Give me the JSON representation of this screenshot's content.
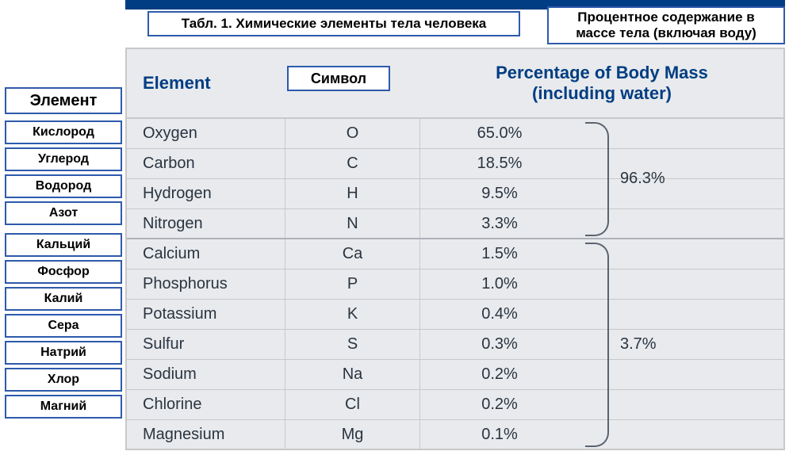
{
  "colors": {
    "bar": "#003d82",
    "box_border": "#2e5aac",
    "table_border": "#c8c8c8",
    "header_text": "#003d82",
    "body_text": "#2a3440",
    "table_bg": "#e8eaed",
    "bracket": "#5a6470"
  },
  "typography": {
    "header_fontsize": 22,
    "body_fontsize": 20,
    "box_fontsize": 17,
    "left_label_fontsize": 16
  },
  "top": {
    "title": "Табл. 1. Химические элементы  тела человека",
    "percent_box": "Процентное содержание в массе тела (включая воду)"
  },
  "left_labels": {
    "header": "Элемент",
    "rows": [
      "Кислород",
      "Углерод",
      "Водород",
      "Азот",
      "Кальций",
      "Фосфор",
      "Калий",
      "Сера",
      "Натрий",
      "Хлор",
      "Магний"
    ]
  },
  "overlay_symbol_label": "Символ",
  "table": {
    "type": "table",
    "columns": {
      "element": "Element",
      "percentage_line1": "Percentage of Body Mass",
      "percentage_line2": "(including water)"
    },
    "rows": [
      {
        "element": "Oxygen",
        "symbol": "O",
        "pct": "65.0%"
      },
      {
        "element": "Carbon",
        "symbol": "C",
        "pct": "18.5%"
      },
      {
        "element": "Hydrogen",
        "symbol": "H",
        "pct": "9.5%"
      },
      {
        "element": "Nitrogen",
        "symbol": "N",
        "pct": "3.3%"
      },
      {
        "element": "Calcium",
        "symbol": "Ca",
        "pct": "1.5%"
      },
      {
        "element": "Phosphorus",
        "symbol": "P",
        "pct": "1.0%"
      },
      {
        "element": "Potassium",
        "symbol": "K",
        "pct": "0.4%"
      },
      {
        "element": "Sulfur",
        "symbol": "S",
        "pct": "0.3%"
      },
      {
        "element": "Sodium",
        "symbol": "Na",
        "pct": "0.2%"
      },
      {
        "element": "Chlorine",
        "symbol": "Cl",
        "pct": "0.2%"
      },
      {
        "element": "Magnesium",
        "symbol": "Mg",
        "pct": "0.1%"
      }
    ],
    "groups": [
      {
        "from_row": 0,
        "to_row": 3,
        "total": "96.3%"
      },
      {
        "from_row": 4,
        "to_row": 10,
        "total": "3.7%"
      }
    ]
  }
}
